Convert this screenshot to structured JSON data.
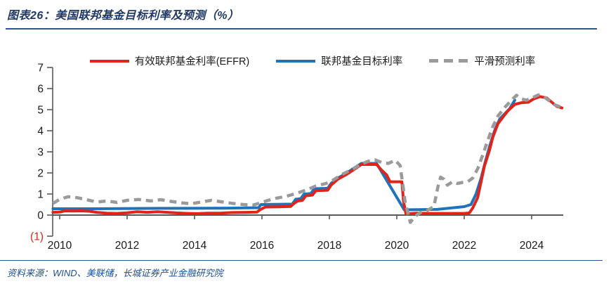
{
  "header": {
    "title": "图表26：美国联邦基金目标利率及预测（%）"
  },
  "footer": {
    "source": "资料来源：WIND、美联储，长城证券产业金融研究院"
  },
  "legend": [
    {
      "id": "effr",
      "label": "有效联邦基金利率(EFFR)",
      "color": "#e2231a",
      "style": "solid"
    },
    {
      "id": "target",
      "label": "联邦基金目标利率",
      "color": "#2173b9",
      "style": "solid"
    },
    {
      "id": "forecast",
      "label": "平滑预测利率",
      "color": "#9a9a9a",
      "style": "dashed"
    }
  ],
  "chart_data": {
    "type": "line",
    "title": "美国联邦基金目标利率及预测（%）",
    "xlabel": "",
    "ylabel": "%",
    "xlim": [
      2009.78,
      2025.0
    ],
    "ylim": [
      -1,
      7
    ],
    "grid": false,
    "legend_position": "top",
    "axis_color": "#595959",
    "tick_text_color": "#1a1a1a",
    "negative_tick_color": "#e2231a",
    "x_ticks": [
      {
        "v": 2010,
        "label": "2010"
      },
      {
        "v": 2012,
        "label": "2012"
      },
      {
        "v": 2014,
        "label": "2014"
      },
      {
        "v": 2016,
        "label": "2016"
      },
      {
        "v": 2018,
        "label": "2018"
      },
      {
        "v": 2020,
        "label": "2020"
      },
      {
        "v": 2022,
        "label": "2022"
      },
      {
        "v": 2024,
        "label": "2024"
      }
    ],
    "y_ticks": [
      {
        "v": 7,
        "label": "7"
      },
      {
        "v": 6,
        "label": "6"
      },
      {
        "v": 5,
        "label": "5"
      },
      {
        "v": 4,
        "label": "4"
      },
      {
        "v": 3,
        "label": "3"
      },
      {
        "v": 2,
        "label": "2"
      },
      {
        "v": 1,
        "label": "1"
      },
      {
        "v": 0,
        "label": "0"
      },
      {
        "v": -1,
        "label": "(1)",
        "color": "#e2231a"
      }
    ],
    "series": [
      {
        "id": "target",
        "name": "联邦基金目标利率",
        "color": "#2173b9",
        "dash": null,
        "width": 4,
        "points": [
          [
            2009.8,
            0.3
          ],
          [
            2011.0,
            0.3
          ],
          [
            2013.0,
            0.32
          ],
          [
            2015.0,
            0.33
          ],
          [
            2015.9,
            0.35
          ],
          [
            2015.97,
            0.5
          ],
          [
            2016.9,
            0.52
          ],
          [
            2017.0,
            0.75
          ],
          [
            2017.15,
            0.78
          ],
          [
            2017.25,
            1.0
          ],
          [
            2017.45,
            1.02
          ],
          [
            2017.55,
            1.25
          ],
          [
            2017.95,
            1.27
          ],
          [
            2018.05,
            1.5
          ],
          [
            2018.25,
            1.75
          ],
          [
            2018.5,
            1.98
          ],
          [
            2018.72,
            2.22
          ],
          [
            2018.95,
            2.45
          ],
          [
            2019.4,
            2.45
          ],
          [
            2020.22,
            0.25
          ],
          [
            2021.2,
            0.27
          ],
          [
            2022.0,
            0.4
          ],
          [
            2022.2,
            0.5
          ],
          [
            2022.35,
            1.0
          ],
          [
            2022.5,
            1.75
          ],
          [
            2022.62,
            2.5
          ],
          [
            2022.75,
            3.25
          ],
          [
            2022.9,
            4.0
          ],
          [
            2023.05,
            4.55
          ],
          [
            2023.2,
            4.8
          ],
          [
            2023.35,
            5.05
          ],
          [
            2023.5,
            5.45
          ]
        ]
      },
      {
        "id": "effr",
        "name": "有效联邦基金利率(EFFR)",
        "color": "#e2231a",
        "dash": null,
        "width": 4,
        "points": [
          [
            2009.8,
            0.13
          ],
          [
            2010.0,
            0.14
          ],
          [
            2010.15,
            0.2
          ],
          [
            2010.4,
            0.19
          ],
          [
            2010.65,
            0.2
          ],
          [
            2010.9,
            0.18
          ],
          [
            2011.1,
            0.13
          ],
          [
            2011.4,
            0.09
          ],
          [
            2011.7,
            0.08
          ],
          [
            2012.0,
            0.11
          ],
          [
            2012.3,
            0.16
          ],
          [
            2012.6,
            0.13
          ],
          [
            2012.9,
            0.16
          ],
          [
            2013.2,
            0.13
          ],
          [
            2013.5,
            0.1
          ],
          [
            2013.8,
            0.08
          ],
          [
            2014.1,
            0.07
          ],
          [
            2014.4,
            0.09
          ],
          [
            2014.75,
            0.09
          ],
          [
            2015.1,
            0.12
          ],
          [
            2015.5,
            0.13
          ],
          [
            2015.85,
            0.14
          ],
          [
            2015.95,
            0.26
          ],
          [
            2016.1,
            0.38
          ],
          [
            2016.5,
            0.39
          ],
          [
            2016.85,
            0.41
          ],
          [
            2016.95,
            0.55
          ],
          [
            2017.05,
            0.66
          ],
          [
            2017.2,
            0.7
          ],
          [
            2017.3,
            0.91
          ],
          [
            2017.5,
            0.95
          ],
          [
            2017.6,
            1.16
          ],
          [
            2017.95,
            1.18
          ],
          [
            2018.05,
            1.42
          ],
          [
            2018.25,
            1.7
          ],
          [
            2018.5,
            1.92
          ],
          [
            2018.75,
            2.18
          ],
          [
            2018.95,
            2.4
          ],
          [
            2019.4,
            2.4
          ],
          [
            2019.55,
            2.13
          ],
          [
            2019.7,
            1.9
          ],
          [
            2019.8,
            1.58
          ],
          [
            2020.15,
            1.58
          ],
          [
            2020.2,
            0.65
          ],
          [
            2020.27,
            0.06
          ],
          [
            2020.6,
            0.09
          ],
          [
            2021.0,
            0.08
          ],
          [
            2021.5,
            0.08
          ],
          [
            2022.0,
            0.08
          ],
          [
            2022.15,
            0.1
          ],
          [
            2022.25,
            0.33
          ],
          [
            2022.4,
            0.83
          ],
          [
            2022.5,
            1.58
          ],
          [
            2022.6,
            2.33
          ],
          [
            2022.75,
            3.08
          ],
          [
            2022.85,
            3.7
          ],
          [
            2023.0,
            4.33
          ],
          [
            2023.15,
            4.65
          ],
          [
            2023.3,
            4.95
          ],
          [
            2023.5,
            5.25
          ],
          [
            2023.7,
            5.33
          ],
          [
            2023.9,
            5.35
          ],
          [
            2024.05,
            5.5
          ],
          [
            2024.25,
            5.62
          ],
          [
            2024.45,
            5.55
          ],
          [
            2024.6,
            5.35
          ],
          [
            2024.75,
            5.15
          ],
          [
            2024.9,
            5.08
          ]
        ]
      },
      {
        "id": "forecast",
        "name": "平滑预测利率",
        "color": "#9a9a9a",
        "dash": "10 7",
        "width": 4.5,
        "points": [
          [
            2009.8,
            0.55
          ],
          [
            2010.0,
            0.75
          ],
          [
            2010.25,
            0.87
          ],
          [
            2010.5,
            0.83
          ],
          [
            2010.8,
            0.73
          ],
          [
            2011.1,
            0.62
          ],
          [
            2011.4,
            0.67
          ],
          [
            2011.7,
            0.6
          ],
          [
            2012.0,
            0.7
          ],
          [
            2012.35,
            0.74
          ],
          [
            2012.7,
            0.67
          ],
          [
            2013.0,
            0.73
          ],
          [
            2013.3,
            0.65
          ],
          [
            2013.6,
            0.58
          ],
          [
            2013.9,
            0.54
          ],
          [
            2014.2,
            0.62
          ],
          [
            2014.5,
            0.7
          ],
          [
            2014.8,
            0.63
          ],
          [
            2015.1,
            0.56
          ],
          [
            2015.45,
            0.5
          ],
          [
            2015.75,
            0.48
          ],
          [
            2016.05,
            0.63
          ],
          [
            2016.35,
            0.78
          ],
          [
            2016.7,
            0.88
          ],
          [
            2017.0,
            1.02
          ],
          [
            2017.3,
            1.18
          ],
          [
            2017.6,
            1.38
          ],
          [
            2017.9,
            1.5
          ],
          [
            2018.1,
            1.65
          ],
          [
            2018.4,
            1.95
          ],
          [
            2018.7,
            2.18
          ],
          [
            2018.95,
            2.42
          ],
          [
            2019.15,
            2.55
          ],
          [
            2019.35,
            2.62
          ],
          [
            2019.55,
            2.5
          ],
          [
            2019.75,
            2.45
          ],
          [
            2019.95,
            2.6
          ],
          [
            2020.1,
            2.35
          ],
          [
            2020.25,
            0.6
          ],
          [
            2020.4,
            -0.35
          ],
          [
            2020.55,
            -0.05
          ],
          [
            2020.7,
            0.12
          ],
          [
            2020.9,
            0.22
          ],
          [
            2021.1,
            0.4
          ],
          [
            2021.22,
            1.35
          ],
          [
            2021.3,
            1.8
          ],
          [
            2021.4,
            1.7
          ],
          [
            2021.5,
            1.42
          ],
          [
            2021.65,
            1.58
          ],
          [
            2021.8,
            1.5
          ],
          [
            2021.95,
            1.55
          ],
          [
            2022.1,
            1.58
          ],
          [
            2022.25,
            1.75
          ],
          [
            2022.4,
            2.2
          ],
          [
            2022.55,
            2.85
          ],
          [
            2022.7,
            3.55
          ],
          [
            2022.85,
            4.2
          ],
          [
            2023.0,
            4.7
          ],
          [
            2023.2,
            5.1
          ],
          [
            2023.4,
            5.45
          ],
          [
            2023.55,
            5.68
          ],
          [
            2023.7,
            5.5
          ],
          [
            2023.85,
            5.45
          ],
          [
            2024.0,
            5.55
          ],
          [
            2024.2,
            5.7
          ],
          [
            2024.35,
            5.62
          ],
          [
            2024.5,
            5.45
          ],
          [
            2024.65,
            5.25
          ],
          [
            2024.9,
            5.1
          ]
        ]
      }
    ]
  }
}
